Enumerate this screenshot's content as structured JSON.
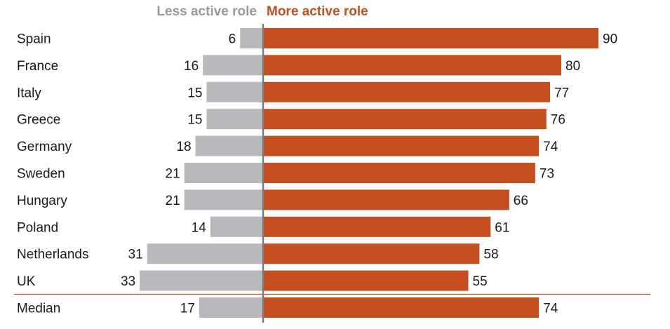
{
  "chart_data": {
    "type": "bar",
    "orientation": "horizontal-diverging",
    "legend": {
      "left_label": "Less active role",
      "right_label": "More active role"
    },
    "colors": {
      "less": "#b9b9bd",
      "more": "#c44e1f",
      "less_text": "#9a9a9a",
      "axis": "#7a7a7a",
      "separator": "#c44e1f"
    },
    "categories": [
      "Spain",
      "France",
      "Italy",
      "Greece",
      "Germany",
      "Sweden",
      "Hungary",
      "Poland",
      "Netherlands",
      "UK",
      "Median"
    ],
    "series": [
      {
        "name": "Less active role",
        "values": [
          6,
          16,
          15,
          15,
          18,
          21,
          21,
          14,
          31,
          33,
          17
        ]
      },
      {
        "name": "More active role",
        "values": [
          90,
          80,
          77,
          76,
          74,
          73,
          66,
          61,
          58,
          55,
          74
        ]
      }
    ],
    "separator_before": "Median",
    "grid": false
  }
}
